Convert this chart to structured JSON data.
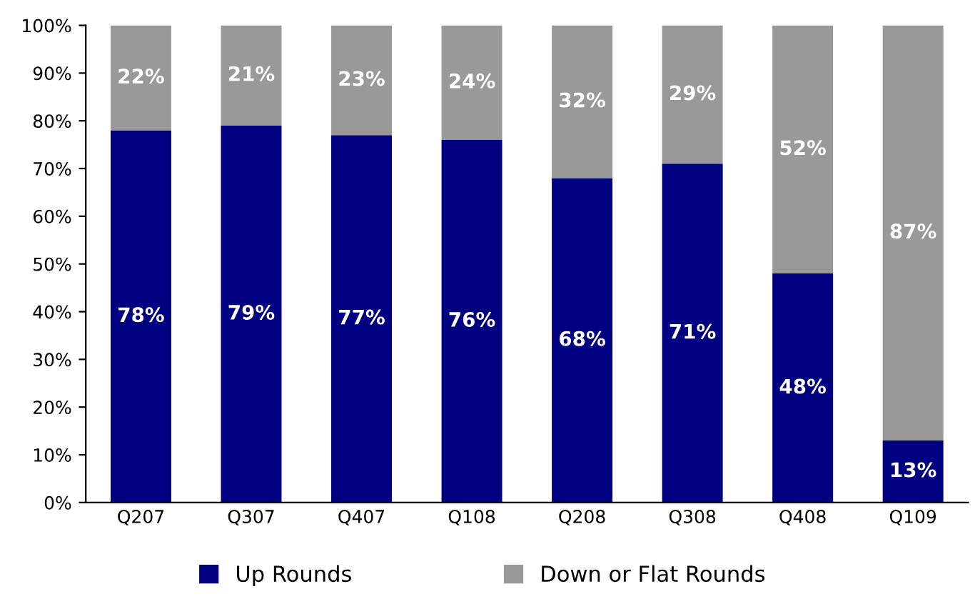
{
  "chart_data": {
    "type": "bar",
    "stacked": true,
    "categories": [
      "Q207",
      "Q307",
      "Q407",
      "Q108",
      "Q208",
      "Q308",
      "Q408",
      "Q109"
    ],
    "series": [
      {
        "name": "Up Rounds",
        "color": "#000080",
        "values": [
          78,
          79,
          77,
          76,
          68,
          71,
          48,
          13
        ],
        "value_labels": [
          "78%",
          "79%",
          "77%",
          "76%",
          "68%",
          "71%",
          "48%",
          "13%"
        ]
      },
      {
        "name": "Down or Flat Rounds",
        "color": "#999999",
        "values": [
          22,
          21,
          23,
          24,
          32,
          29,
          52,
          87
        ],
        "value_labels": [
          "22%",
          "21%",
          "23%",
          "24%",
          "32%",
          "29%",
          "52%",
          "87%"
        ]
      }
    ],
    "ylim": [
      0,
      100
    ],
    "yticks": [
      {
        "value": 0,
        "label": "0%"
      },
      {
        "value": 10,
        "label": "10%"
      },
      {
        "value": 20,
        "label": "20%"
      },
      {
        "value": 30,
        "label": "30%"
      },
      {
        "value": 40,
        "label": "40%"
      },
      {
        "value": 50,
        "label": "50%"
      },
      {
        "value": 60,
        "label": "60%"
      },
      {
        "value": 70,
        "label": "70%"
      },
      {
        "value": 80,
        "label": "80%"
      },
      {
        "value": 90,
        "label": "90%"
      },
      {
        "value": 100,
        "label": "100%"
      }
    ],
    "grid": false,
    "legend": "bottom"
  }
}
